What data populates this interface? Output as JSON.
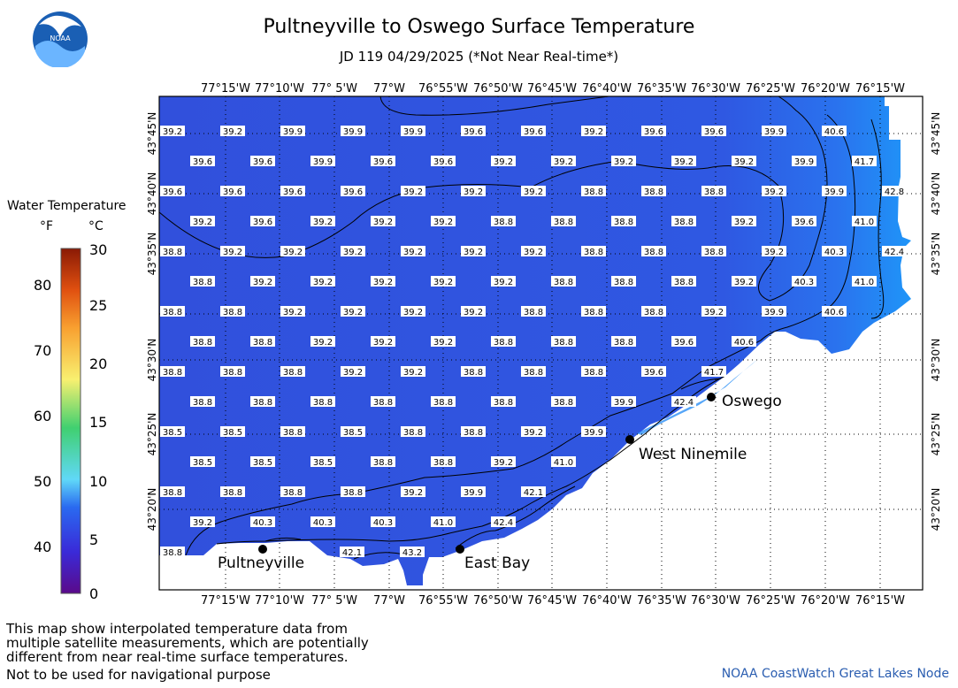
{
  "title": "Pultneyville to Oswego Surface Temperature",
  "subtitle": "JD 119 04/29/2025 (*Not Near Real-time*)",
  "logo_text": "NOAA",
  "legend": {
    "title": "Water Temperature",
    "unit_f": "°F",
    "unit_c": "°C",
    "f_ticks": [
      "80",
      "70",
      "60",
      "50",
      "40"
    ],
    "c_ticks": [
      "30",
      "25",
      "20",
      "15",
      "10",
      "5",
      "0"
    ]
  },
  "axes": {
    "lon_labels": [
      "77°15'W",
      "77°10'W",
      "77° 5'W",
      "77°W",
      "76°55'W",
      "76°50'W",
      "76°45'W",
      "76°40'W",
      "76°35'W",
      "76°30'W",
      "76°25'W",
      "76°20'W",
      "76°15'W"
    ],
    "lat_labels": [
      "43°45'N",
      "43°40'N",
      "43°35'N",
      "43°30'N",
      "43°25'N",
      "43°20'N"
    ]
  },
  "places": [
    {
      "name": "Oswego"
    },
    {
      "name": "West Ninemile"
    },
    {
      "name": "Pultneyville"
    },
    {
      "name": "East Bay"
    }
  ],
  "temperature_rows": [
    [
      "39.2",
      "39.2",
      "39.9",
      "39.9",
      "39.9",
      "39.6",
      "39.6",
      "39.2",
      "39.6",
      "39.6",
      "39.9",
      "40.6"
    ],
    [
      "39.6",
      "39.6",
      "39.9",
      "39.6",
      "39.6",
      "39.2",
      "39.2",
      "39.2",
      "39.2",
      "39.2",
      "39.9",
      "41.7"
    ],
    [
      "39.6",
      "39.6",
      "39.6",
      "39.6",
      "39.2",
      "39.2",
      "39.2",
      "38.8",
      "38.8",
      "38.8",
      "39.2",
      "39.9",
      "42.8"
    ],
    [
      "39.2",
      "39.6",
      "39.2",
      "39.2",
      "39.2",
      "38.8",
      "38.8",
      "38.8",
      "38.8",
      "39.2",
      "39.6",
      "41.0"
    ],
    [
      "38.8",
      "39.2",
      "39.2",
      "39.2",
      "39.2",
      "39.2",
      "39.2",
      "38.8",
      "38.8",
      "38.8",
      "39.2",
      "40.3",
      "42.4"
    ],
    [
      "38.8",
      "39.2",
      "39.2",
      "39.2",
      "39.2",
      "39.2",
      "38.8",
      "38.8",
      "38.8",
      "39.2",
      "40.3",
      "41.0"
    ],
    [
      "38.8",
      "38.8",
      "39.2",
      "39.2",
      "39.2",
      "39.2",
      "38.8",
      "38.8",
      "38.8",
      "39.2",
      "39.9",
      "40.6"
    ],
    [
      "38.8",
      "38.8",
      "39.2",
      "39.2",
      "39.2",
      "38.8",
      "38.8",
      "38.8",
      "39.6",
      "40.6"
    ],
    [
      "38.8",
      "38.8",
      "38.8",
      "39.2",
      "39.2",
      "38.8",
      "38.8",
      "38.8",
      "39.6",
      "41.7"
    ],
    [
      "38.8",
      "38.8",
      "38.8",
      "38.8",
      "38.8",
      "38.8",
      "38.8",
      "39.9",
      "42.4"
    ],
    [
      "38.5",
      "38.5",
      "38.8",
      "38.5",
      "38.8",
      "38.8",
      "39.2",
      "39.9"
    ],
    [
      "38.5",
      "38.5",
      "38.5",
      "38.8",
      "38.8",
      "39.2",
      "41.0"
    ],
    [
      "38.8",
      "38.8",
      "38.8",
      "38.8",
      "39.2",
      "39.9",
      "42.1"
    ],
    [
      "39.2",
      "40.3",
      "40.3",
      "40.3",
      "41.0",
      "42.4"
    ],
    [
      "38.8",
      "42.1",
      "43.2"
    ]
  ],
  "footnote_lines": [
    "This map show interpolated temperature data from",
    "multiple satellite measurements, which are potentially",
    "different from near real-time surface temperatures."
  ],
  "footnote_nav": "Not to be used for navigational purpose",
  "credit": "NOAA CoastWatch Great Lakes Node",
  "colors": {
    "water": "#2f55e0",
    "near_shore": "#2a7bf0",
    "shore_warm": "#1e96f8"
  }
}
